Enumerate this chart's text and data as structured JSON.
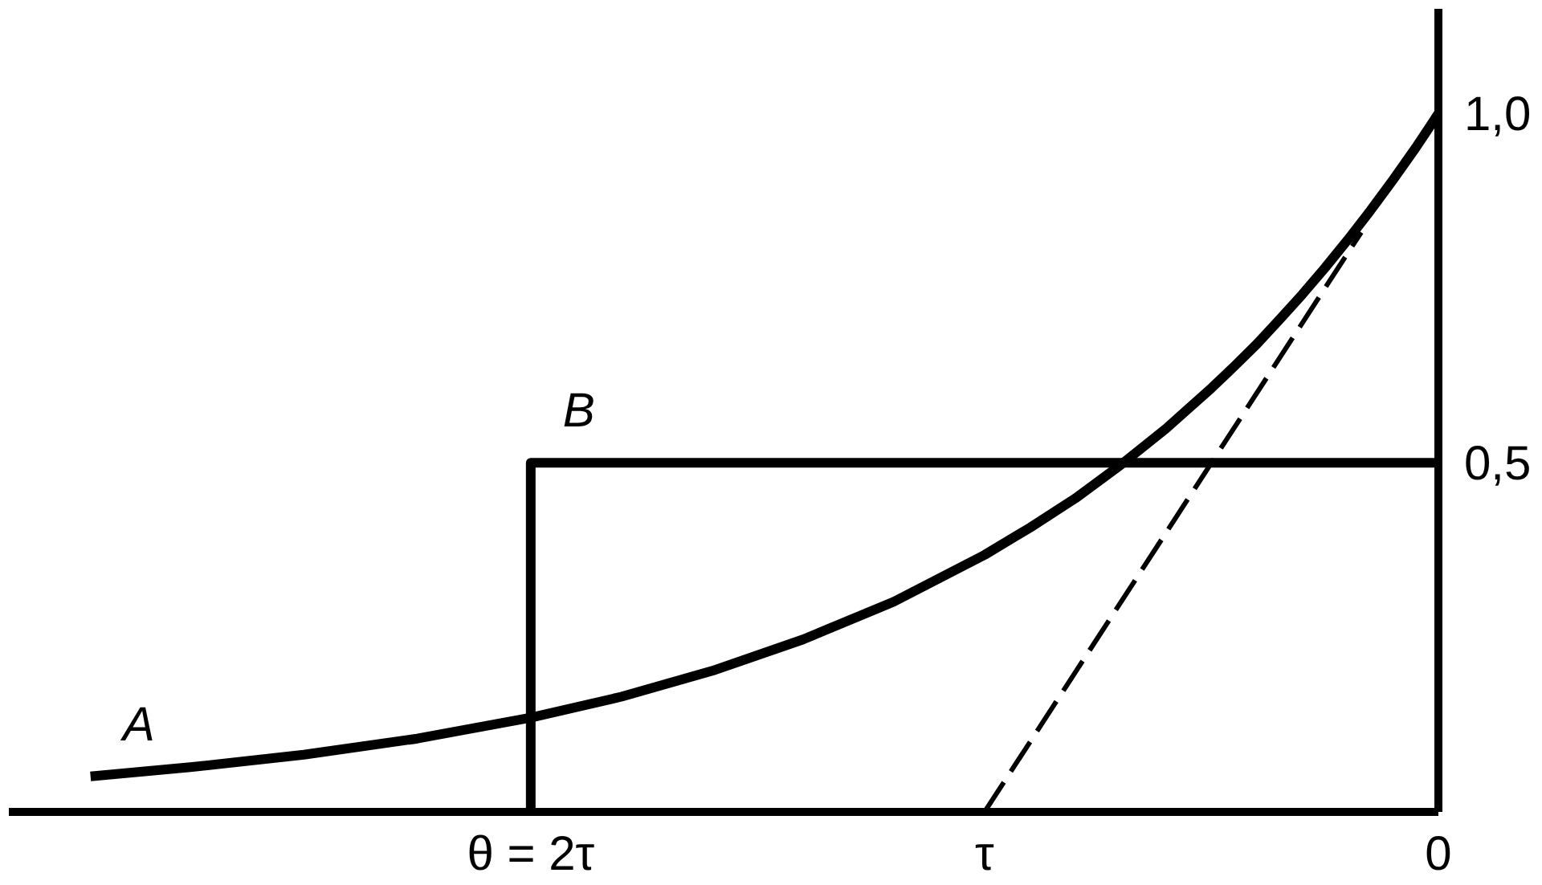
{
  "chart_data": {
    "type": "line",
    "xlim": [
      3.15,
      0
    ],
    "xticks": [
      {
        "value": 2,
        "label": "θ = 2τ"
      },
      {
        "value": 1,
        "label": "τ"
      },
      0
    ],
    "ylim": [
      0,
      1.15
    ],
    "yticks": [
      {
        "value": 0.5,
        "label": "0,5"
      },
      {
        "value": 1,
        "label": "1,0"
      }
    ],
    "grid": false,
    "legend": false,
    "marker": "none",
    "series": [
      {
        "name": "A",
        "color": "#000000",
        "x": [
          2.97,
          2.75,
          2.5,
          2.25,
          2.0,
          1.8,
          1.6,
          1.4,
          1.2,
          1.0,
          0.9,
          0.8,
          0.7,
          0.6,
          0.5,
          0.45,
          0.4,
          0.35,
          0.3,
          0.25,
          0.2,
          0.15,
          0.1,
          0.05,
          0.0
        ],
        "values": [
          0.051,
          0.064,
          0.082,
          0.105,
          0.135,
          0.165,
          0.202,
          0.247,
          0.301,
          0.368,
          0.407,
          0.449,
          0.497,
          0.549,
          0.607,
          0.638,
          0.67,
          0.705,
          0.741,
          0.779,
          0.819,
          0.861,
          0.905,
          0.951,
          1.0
        ]
      },
      {
        "name": "B",
        "color": "#000000",
        "x": [
          2,
          2,
          0
        ],
        "values": [
          0,
          0.5,
          0.5
        ]
      },
      {
        "color": "#000000",
        "x": [
          1,
          0.17
        ],
        "values": [
          0,
          0.83
        ],
        "line_style": "dashed"
      }
    ]
  }
}
